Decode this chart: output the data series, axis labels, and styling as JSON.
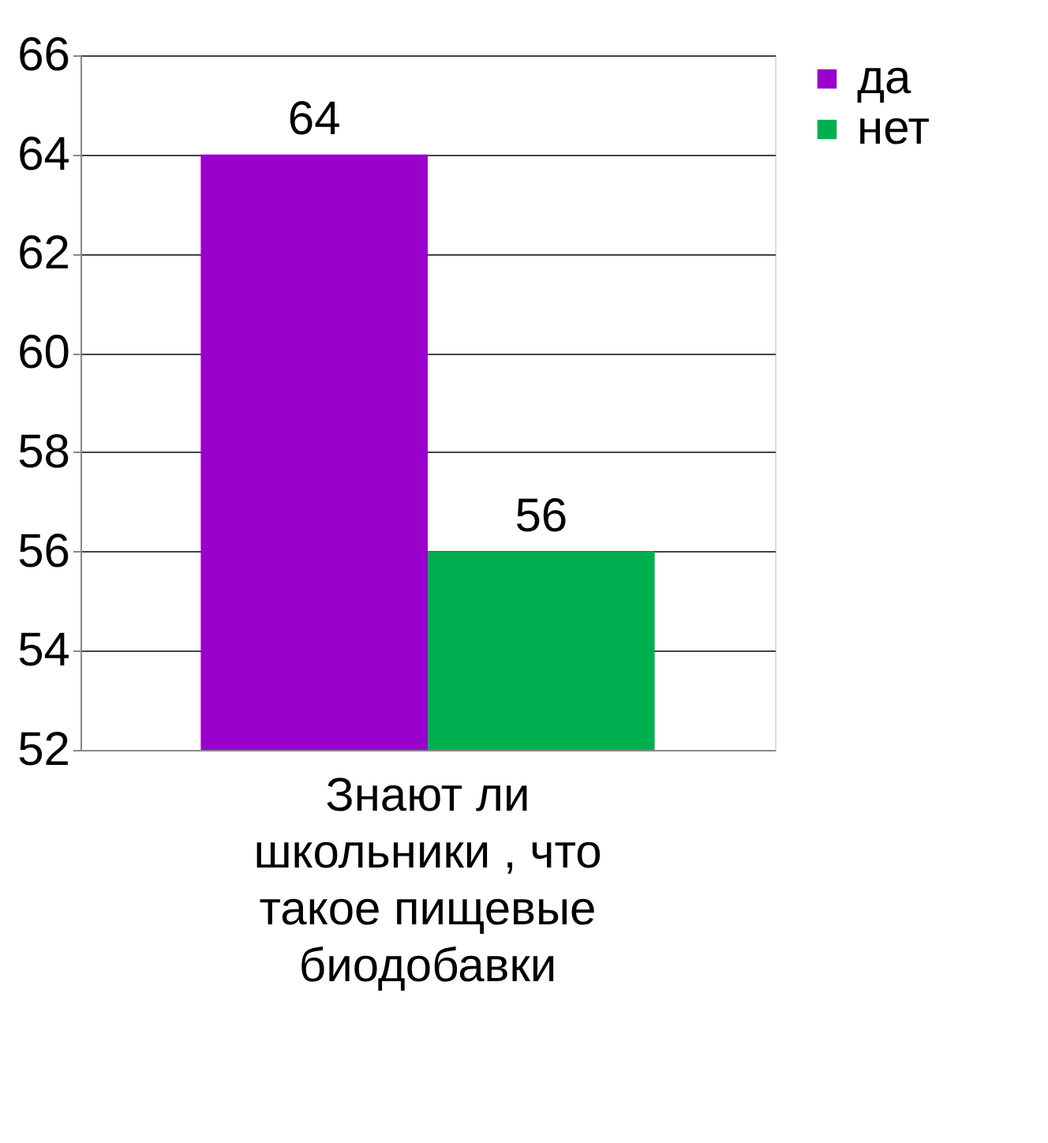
{
  "chart_data": {
    "type": "bar",
    "categories": [
      "Знают ли школьники , что такое пищевые биодобавки"
    ],
    "series": [
      {
        "name": "да",
        "color": "#9900cc",
        "values": [
          64
        ]
      },
      {
        "name": "нет",
        "color": "#00b050",
        "values": [
          56
        ]
      }
    ],
    "ylim": [
      52,
      66
    ],
    "yticks": [
      52,
      54,
      56,
      58,
      60,
      62,
      64,
      66
    ],
    "grid": "y",
    "legend": "right",
    "data_labels": true
  }
}
